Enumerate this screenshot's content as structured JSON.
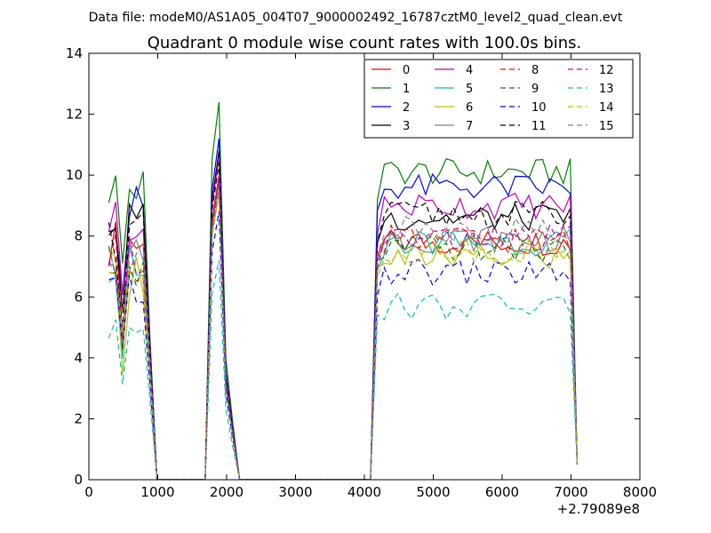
{
  "header": {
    "data_file_label": "Data file: modeM0/AS1A05_004T07_9000002492_16787cztM0_level2_quad_clean.evt"
  },
  "chart_data": {
    "type": "line",
    "title": "Quadrant 0 module wise count rates with 100.0s bins.",
    "xlabel": "",
    "ylabel": "",
    "x_offset_label": "+2.79089e8",
    "xlim": [
      0,
      8000
    ],
    "ylim": [
      0,
      14
    ],
    "x_ticks": [
      0,
      1000,
      2000,
      3000,
      4000,
      5000,
      6000,
      7000,
      8000
    ],
    "y_ticks": [
      0,
      2,
      4,
      6,
      8,
      10,
      12,
      14
    ],
    "grid": false,
    "legend_position": "top-right",
    "legend_columns": 4,
    "series": [
      {
        "name": "0",
        "color": "#ff0000",
        "dash": "solid",
        "base": 7.8,
        "peak1": 8.6,
        "peak2": 10.0
      },
      {
        "name": "1",
        "color": "#008000",
        "dash": "solid",
        "base": 10.1,
        "peak1": 10.4,
        "peak2": 12.4
      },
      {
        "name": "2",
        "color": "#0000ff",
        "dash": "solid",
        "base": 9.6,
        "peak1": 9.7,
        "peak2": 11.2
      },
      {
        "name": "3",
        "color": "#000000",
        "dash": "solid",
        "base": 8.6,
        "peak1": 9.2,
        "peak2": 10.8
      },
      {
        "name": "4",
        "color": "#bf00bf",
        "dash": "solid",
        "base": 9.0,
        "peak1": 9.4,
        "peak2": 10.6
      },
      {
        "name": "5",
        "color": "#00bfbf",
        "dash": "solid",
        "base": 7.8,
        "peak1": 8.0,
        "peak2": 9.8
      },
      {
        "name": "6",
        "color": "#bfbf00",
        "dash": "solid",
        "base": 7.3,
        "peak1": 7.6,
        "peak2": 9.4
      },
      {
        "name": "7",
        "color": "#808080",
        "dash": "solid",
        "base": 7.9,
        "peak1": 8.2,
        "peak2": 9.8
      },
      {
        "name": "8",
        "color": "#ff0000",
        "dash": "dashed",
        "base": 7.9,
        "peak1": 8.1,
        "peak2": 9.9
      },
      {
        "name": "9",
        "color": "#008000",
        "dash": "dashed",
        "base": 7.6,
        "peak1": 7.8,
        "peak2": 9.6
      },
      {
        "name": "10",
        "color": "#0000ff",
        "dash": "dashed",
        "base": 6.8,
        "peak1": 7.0,
        "peak2": 8.8
      },
      {
        "name": "11",
        "color": "#000000",
        "dash": "dashed",
        "base": 8.7,
        "peak1": 8.8,
        "peak2": 10.4
      },
      {
        "name": "12",
        "color": "#bf00bf",
        "dash": "dashed",
        "base": 7.9,
        "peak1": 8.0,
        "peak2": 9.9
      },
      {
        "name": "13",
        "color": "#00bfbf",
        "dash": "dashed",
        "base": 5.7,
        "peak1": 5.8,
        "peak2": 7.2
      },
      {
        "name": "14",
        "color": "#bfbf00",
        "dash": "dashed",
        "base": 7.5,
        "peak1": 7.6,
        "peak2": 9.4
      },
      {
        "name": "15",
        "color": "#808080",
        "dash": "dashed",
        "base": 8.2,
        "peak1": 8.2,
        "peak2": 9.6
      }
    ]
  }
}
